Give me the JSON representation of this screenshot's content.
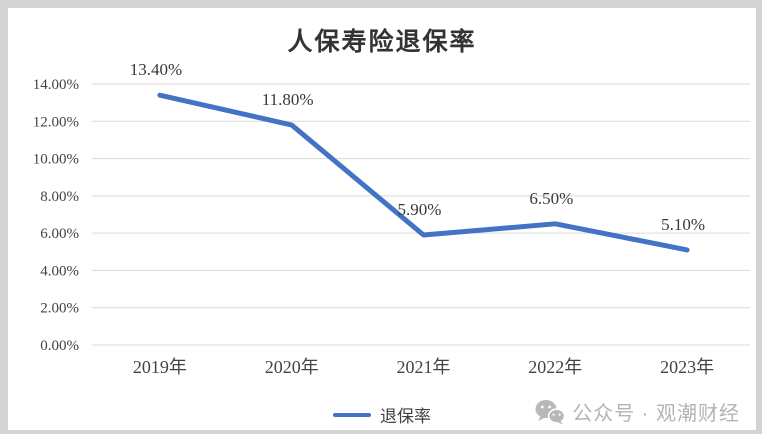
{
  "chart_data": {
    "type": "line",
    "title": "人保寿险退保率",
    "categories": [
      "2019年",
      "2020年",
      "2021年",
      "2022年",
      "2023年"
    ],
    "series": [
      {
        "name": "退保率",
        "values": [
          13.4,
          11.8,
          5.9,
          6.5,
          5.1
        ],
        "color": "#4472C4"
      }
    ],
    "data_labels": [
      "13.40%",
      "11.80%",
      "5.90%",
      "6.50%",
      "5.10%"
    ],
    "y_tick_labels": [
      "0.00%",
      "2.00%",
      "4.00%",
      "6.00%",
      "8.00%",
      "10.00%",
      "12.00%",
      "14.00%"
    ],
    "ylim": [
      0,
      14
    ],
    "y_step": 2,
    "grid": true,
    "legend_position": "bottom",
    "colors": {
      "line": "#4472C4",
      "grid": "#D9D9D9",
      "axis_text": "#444444",
      "data_label": "#383838",
      "title": "#333333"
    }
  },
  "legend": {
    "label": "退保率",
    "swatch_color": "#4472C4"
  },
  "watermark": {
    "icon": "wechat-icon",
    "text": "公众号 · 观潮财经",
    "color": "#B3B3B3"
  }
}
